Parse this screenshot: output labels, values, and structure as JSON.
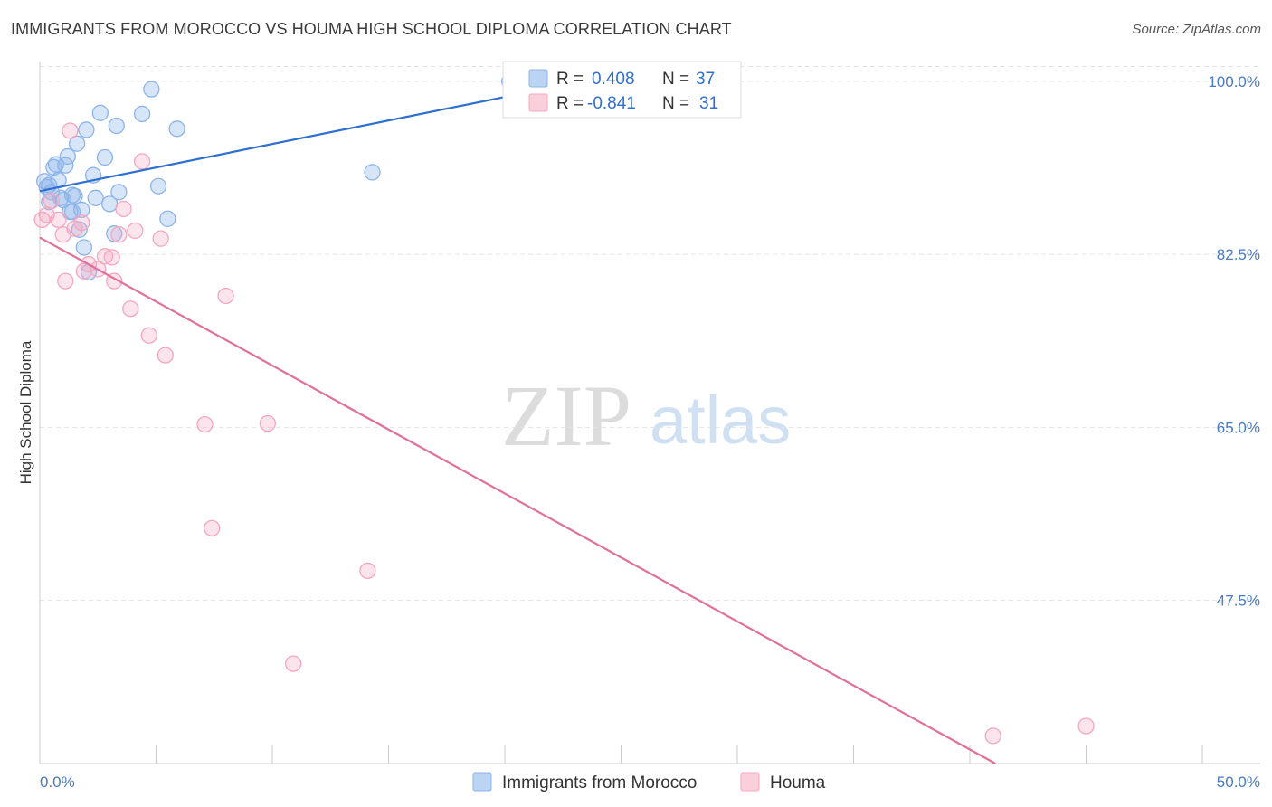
{
  "title": "IMMIGRANTS FROM MOROCCO VS HOUMA HIGH SCHOOL DIPLOMA CORRELATION CHART",
  "source": "Source: ZipAtlas.com",
  "watermark": {
    "zip": "ZIP",
    "atlas": "atlas"
  },
  "chart_data": {
    "type": "scatter",
    "title": "IMMIGRANTS FROM MOROCCO VS HOUMA HIGH SCHOOL DIPLOMA CORRELATION CHART",
    "xlabel": "",
    "ylabel": "High School Diploma",
    "xlim": [
      0,
      50
    ],
    "ylim": [
      31,
      102
    ],
    "x_tick_labels": [
      "0.0%",
      "50.0%"
    ],
    "y_ticks": [
      47.5,
      65.0,
      82.5,
      100.0
    ],
    "y_tick_labels": [
      "47.5%",
      "65.0%",
      "82.5%",
      "100.0%"
    ],
    "grid": true,
    "legend_position": "top-center",
    "series": [
      {
        "name": "Immigrants from Morocco",
        "color": "#8db4ea",
        "line_color": "#2e6fd1",
        "R": "0.408",
        "N": "37",
        "trend": {
          "x": [
            0,
            25
          ],
          "y": [
            88.9,
            100.8
          ]
        },
        "points": [
          [
            0.2,
            89.9
          ],
          [
            0.3,
            89.3
          ],
          [
            0.4,
            89.5
          ],
          [
            0.5,
            88.8
          ],
          [
            0.6,
            91.3
          ],
          [
            0.7,
            91.6
          ],
          [
            0.8,
            90.0
          ],
          [
            0.9,
            88.2
          ],
          [
            1.0,
            88.0
          ],
          [
            1.1,
            91.5
          ],
          [
            1.2,
            92.4
          ],
          [
            1.3,
            86.8
          ],
          [
            1.4,
            88.5
          ],
          [
            1.5,
            88.4
          ],
          [
            1.6,
            93.7
          ],
          [
            1.7,
            85.0
          ],
          [
            1.8,
            87.0
          ],
          [
            1.9,
            83.2
          ],
          [
            2.0,
            95.1
          ],
          [
            2.1,
            80.7
          ],
          [
            2.3,
            90.5
          ],
          [
            2.4,
            88.2
          ],
          [
            2.6,
            96.8
          ],
          [
            2.8,
            92.3
          ],
          [
            3.0,
            87.6
          ],
          [
            3.2,
            84.6
          ],
          [
            3.3,
            95.5
          ],
          [
            3.4,
            88.8
          ],
          [
            4.4,
            96.7
          ],
          [
            4.8,
            99.2
          ],
          [
            5.1,
            89.4
          ],
          [
            5.5,
            86.1
          ],
          [
            5.9,
            95.2
          ],
          [
            14.3,
            90.8
          ],
          [
            20.2,
            100.0
          ],
          [
            0.4,
            87.8
          ],
          [
            1.4,
            86.8
          ]
        ]
      },
      {
        "name": "Houma",
        "color": "#f4a7bf",
        "line_color": "#e0709a",
        "R": "-0.841",
        "N": "31",
        "trend": {
          "x": [
            0,
            41.1
          ],
          "y": [
            84.2,
            31
          ]
        },
        "points": [
          [
            0.1,
            86.0
          ],
          [
            0.3,
            86.5
          ],
          [
            0.5,
            87.9
          ],
          [
            0.8,
            86.0
          ],
          [
            1.0,
            84.5
          ],
          [
            1.1,
            79.8
          ],
          [
            1.3,
            95.0
          ],
          [
            1.5,
            85.1
          ],
          [
            1.8,
            85.7
          ],
          [
            1.9,
            80.8
          ],
          [
            2.1,
            81.5
          ],
          [
            2.5,
            81.0
          ],
          [
            2.8,
            82.3
          ],
          [
            3.1,
            82.2
          ],
          [
            3.2,
            79.8
          ],
          [
            3.4,
            84.5
          ],
          [
            3.6,
            87.1
          ],
          [
            3.9,
            77.0
          ],
          [
            4.1,
            84.9
          ],
          [
            4.4,
            91.9
          ],
          [
            4.7,
            74.3
          ],
          [
            5.2,
            84.1
          ],
          [
            5.4,
            72.3
          ],
          [
            7.1,
            65.3
          ],
          [
            7.4,
            54.8
          ],
          [
            8.0,
            78.3
          ],
          [
            9.8,
            65.4
          ],
          [
            10.9,
            41.1
          ],
          [
            14.1,
            50.5
          ],
          [
            41.0,
            33.8
          ],
          [
            45.0,
            34.8
          ]
        ]
      }
    ]
  },
  "legend": {
    "r_label": "R =",
    "n_label": "N =",
    "rows": [
      {
        "r": "0.408",
        "n": "37"
      },
      {
        "r": "-0.841",
        "n": "31"
      }
    ]
  },
  "bottom_legend": [
    "Immigrants from Morocco",
    "Houma"
  ]
}
